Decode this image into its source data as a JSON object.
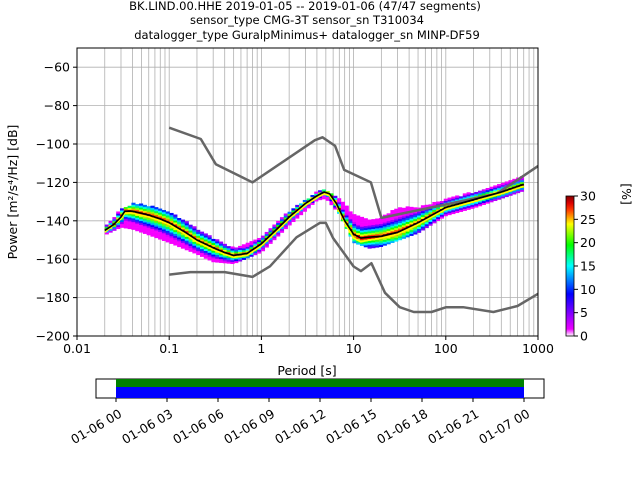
{
  "title_lines": [
    "BK.LIND.00.HHE   2019-01-05 -- 2019-01-06  (47/47 segments)",
    "sensor_type CMG-3T sensor_sn T310034",
    "datalogger_type GuralpMinimus+ datalogger_sn MINP-DF59"
  ],
  "chart_data": {
    "type": "heatmap",
    "subtype": "probabilistic power spectral density",
    "xlabel": "Period [s]",
    "ylabel": "Power [m²/s⁴/Hz] [dB]",
    "x_scale": "log",
    "xlim": [
      0.01,
      1000
    ],
    "ylim": [
      -200,
      -50
    ],
    "x_ticks": [
      {
        "value": 0.01,
        "label": "0.01"
      },
      {
        "value": 0.1,
        "label": "0.1"
      },
      {
        "value": 1,
        "label": "1"
      },
      {
        "value": 10,
        "label": "10"
      },
      {
        "value": 100,
        "label": "100"
      },
      {
        "value": 1000,
        "label": "1000"
      }
    ],
    "y_ticks": [
      -60,
      -80,
      -100,
      -120,
      -140,
      -160,
      -180,
      -200
    ],
    "grid": true,
    "colorbar": {
      "label": "[%]",
      "min": 0,
      "max": 30,
      "ticks": [
        0,
        5,
        10,
        15,
        20,
        25,
        30
      ],
      "colors": [
        "#ffffff",
        "#ff00ff",
        "#0000ff",
        "#00ffff",
        "#00ff00",
        "#ffff00",
        "#ff0000",
        "#800000"
      ]
    },
    "noise_model_high": {
      "period": [
        0.1,
        0.22,
        0.32,
        0.8,
        3.8,
        4.6,
        6.3,
        7.9,
        15.4,
        20,
        354.8,
        1000
      ],
      "power": [
        -91.5,
        -97.4,
        -110.5,
        -120,
        -98,
        -96.5,
        -101,
        -113.5,
        -120,
        -138.5,
        -126,
        -111.5
      ]
    },
    "noise_model_low": {
      "period": [
        0.1,
        0.17,
        0.4,
        0.8,
        1.24,
        2.4,
        4.3,
        5,
        6,
        10,
        12,
        15.6,
        21.9,
        31.6,
        45,
        70,
        101,
        154,
        328,
        600,
        1000
      ],
      "power": [
        -168,
        -166.7,
        -166.7,
        -169.2,
        -163.7,
        -148.6,
        -141.1,
        -141.1,
        -149,
        -163.8,
        -166.2,
        -162.1,
        -177.5,
        -185,
        -187.5,
        -187.5,
        -185,
        -185,
        -187.5,
        -184.4,
        -178
      ]
    },
    "mean_psd": {
      "period": [
        0.02,
        0.025,
        0.03,
        0.033,
        0.04,
        0.06,
        0.08,
        0.1,
        0.15,
        0.2,
        0.3,
        0.4,
        0.5,
        0.7,
        1,
        1.5,
        2,
        3,
        4,
        4.8,
        5.5,
        6.5,
        8,
        10,
        12,
        15,
        20,
        30,
        50,
        100,
        200,
        400,
        700
      ],
      "power": [
        -145,
        -142,
        -138,
        -135,
        -135,
        -137,
        -139,
        -141,
        -146,
        -150,
        -154,
        -156.5,
        -158,
        -157,
        -152,
        -144,
        -138,
        -131,
        -127,
        -125,
        -126,
        -131,
        -140,
        -147,
        -149,
        -148.5,
        -148,
        -146,
        -141,
        -133,
        -129,
        -125,
        -121
      ]
    },
    "mode_psd": {
      "period": [
        0.02,
        0.025,
        0.03,
        0.033,
        0.04,
        0.06,
        0.08,
        0.1,
        0.15,
        0.2,
        0.3,
        0.4,
        0.5,
        0.7,
        1,
        1.5,
        2,
        3,
        4,
        4.8,
        5.5,
        6.5,
        8,
        10,
        12,
        15,
        20,
        30,
        50,
        100,
        200,
        400,
        700
      ],
      "power": [
        -146,
        -142,
        -139,
        -136,
        -136,
        -138,
        -140,
        -142,
        -147,
        -151,
        -155,
        -157.5,
        -159,
        -158,
        -153,
        -145,
        -139,
        -132,
        -128,
        -126,
        -127,
        -132,
        -141,
        -149,
        -151,
        -150,
        -149,
        -147,
        -142,
        -134,
        -130,
        -126,
        -122
      ]
    },
    "psd_spread": {
      "period": [
        0.02,
        0.03,
        0.04,
        0.06,
        0.1,
        0.2,
        0.3,
        0.5,
        1,
        2,
        4,
        5,
        7,
        10,
        15,
        20,
        30,
        50,
        100,
        200,
        700
      ],
      "upper_db": [
        -143,
        -134,
        -131,
        -132,
        -135,
        -144,
        -149,
        -154,
        -149,
        -135,
        -125,
        -123.5,
        -128,
        -137,
        -140,
        -138,
        -133,
        -133,
        -129,
        -125,
        -117
      ],
      "lower_db": [
        -147,
        -143,
        -144,
        -147,
        -151,
        -157,
        -161,
        -162,
        -156,
        -142,
        -129,
        -128,
        -136,
        -151,
        -154,
        -153,
        -150,
        -146,
        -137,
        -133,
        -124
      ]
    },
    "time_axis": {
      "start": "01-06 00",
      "end": "01-07 00",
      "tick_labels": [
        "01-06 00",
        "01-06 03",
        "01-06 06",
        "01-06 09",
        "01-06 12",
        "01-06 15",
        "01-06 18",
        "01-06 21",
        "01-07 00"
      ],
      "coverage_bar_colors": [
        "#008000",
        "#0000ff"
      ]
    }
  }
}
